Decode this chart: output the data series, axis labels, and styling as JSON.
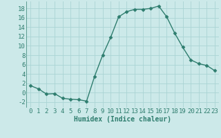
{
  "x": [
    0,
    1,
    2,
    3,
    4,
    5,
    6,
    7,
    8,
    9,
    10,
    11,
    12,
    13,
    14,
    15,
    16,
    17,
    18,
    19,
    20,
    21,
    22,
    23
  ],
  "y": [
    1.5,
    0.8,
    -0.3,
    -0.2,
    -1.2,
    -1.4,
    -1.5,
    -1.8,
    3.5,
    8.0,
    11.8,
    16.2,
    17.3,
    17.8,
    17.8,
    18.0,
    18.5,
    16.2,
    12.7,
    9.7,
    7.0,
    6.2,
    5.8,
    4.7
  ],
  "line_color": "#2e7d6e",
  "marker": "D",
  "marker_size": 2.5,
  "bg_color": "#cce9e9",
  "grid_color": "#b0d8d8",
  "xlabel": "Humidex (Indice chaleur)",
  "xlabel_fontsize": 7,
  "yticks": [
    -2,
    0,
    2,
    4,
    6,
    8,
    10,
    12,
    14,
    16,
    18
  ],
  "xlim": [
    -0.5,
    23.5
  ],
  "ylim": [
    -3.2,
    19.5
  ],
  "tick_fontsize": 6.5
}
